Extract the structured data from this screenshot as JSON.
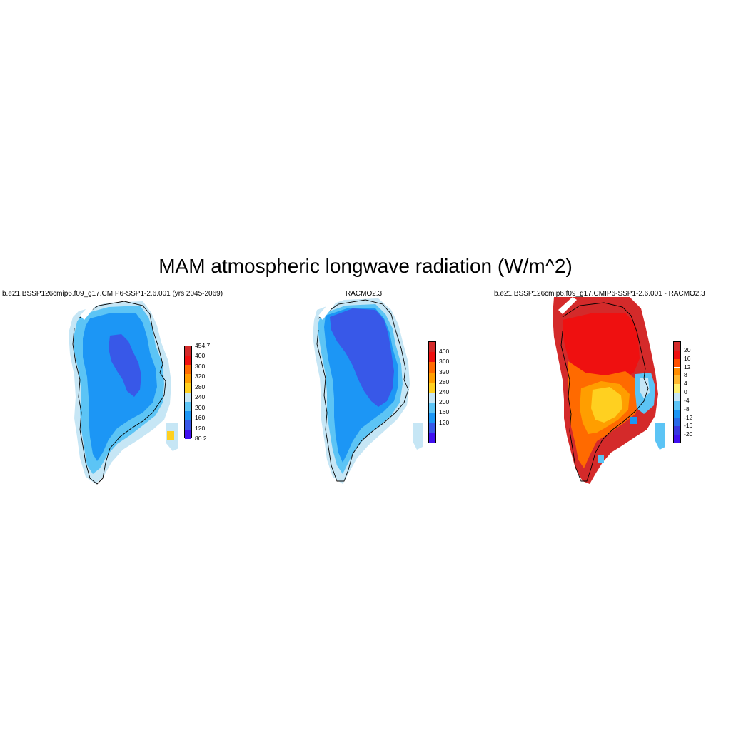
{
  "figure": {
    "title": "MAM atmospheric longwave radiation (W/m^2)"
  },
  "panels": [
    {
      "id": "model",
      "title": "b.e21.BSSP126cmip6.f09_g17.CMIP6-SSP1-2.6.001 (yrs 2045-2069)",
      "colorbar": {
        "labels": [
          "454.7",
          "400",
          "360",
          "320",
          "280",
          "240",
          "200",
          "160",
          "120",
          "80.2"
        ],
        "colors": [
          "#d42a2a",
          "#ef1010",
          "#ff6a00",
          "#ff9e00",
          "#ffd020",
          "#c6e6f5",
          "#5cc4f5",
          "#1c96f5",
          "#3858e8",
          "#4010f0"
        ]
      }
    },
    {
      "id": "obs",
      "title": "RACMO2.3",
      "colorbar": {
        "labels": [
          "400",
          "360",
          "320",
          "280",
          "240",
          "200",
          "160",
          "120"
        ],
        "colors": [
          "#d42a2a",
          "#ef1010",
          "#ff6a00",
          "#ff9e00",
          "#ffd020",
          "#c6e6f5",
          "#5cc4f5",
          "#1c96f5",
          "#3858e8",
          "#4010f0"
        ]
      }
    },
    {
      "id": "diff",
      "title": "b.e21.BSSP126cmip6.f09_g17.CMIP6-SSP1-2.6.001 - RACMO2.3",
      "colorbar": {
        "labels": [
          "20",
          "16",
          "12",
          "8",
          "4",
          "0",
          "-4",
          "-8",
          "-12",
          "-16",
          "-20"
        ],
        "colors": [
          "#d42a2a",
          "#ef1010",
          "#ff5000",
          "#ff8c00",
          "#ffb830",
          "#fff070",
          "#c6e6f5",
          "#5cc4f5",
          "#1c96f5",
          "#2a6ae8",
          "#3838e0",
          "#4010f0"
        ]
      }
    }
  ]
}
